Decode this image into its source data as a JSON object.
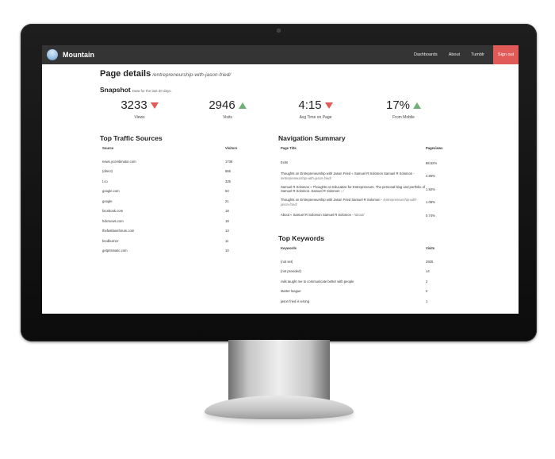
{
  "app": {
    "brand": "Mountain"
  },
  "nav": {
    "items": [
      "Dashboards",
      "About",
      "Tumblr"
    ],
    "signout": "Sign out"
  },
  "page": {
    "title": "Page details",
    "path": "/entrepreneurship-with-jason-fried/"
  },
  "snapshot": {
    "title": "Snapshot",
    "note": "Data for the last 30 days.",
    "stats": [
      {
        "value": "3233",
        "label": "Views",
        "trend": "down"
      },
      {
        "value": "2946",
        "label": "Visits",
        "trend": "up"
      },
      {
        "value": "4:15",
        "label": "Avg Time on Page",
        "trend": "down"
      },
      {
        "value": "17%",
        "label": "From Mobile",
        "trend": "up"
      }
    ]
  },
  "traffic": {
    "title": "Top Traffic Sources",
    "columns": [
      "Source",
      "Visitors"
    ],
    "rows": [
      [
        "news.ycombinator.com",
        "1738"
      ],
      [
        "(direct)",
        "655"
      ],
      [
        "t.co",
        "325"
      ],
      [
        "google.com",
        "53"
      ],
      [
        "google",
        "21"
      ],
      [
        "facebook.com",
        "18"
      ],
      [
        "hckrnews.com",
        "18"
      ],
      [
        "thefastlaneforum.com",
        "13"
      ],
      [
        "feedburner",
        "11"
      ],
      [
        "getprismatic.com",
        "10"
      ]
    ]
  },
  "navsummary": {
    "title": "Navigation Summary",
    "columns": [
      "Page Title",
      "Pageviews"
    ],
    "rows": [
      {
        "title": "Exits",
        "path": "",
        "value": "88.52%"
      },
      {
        "title": "Thoughts on Entrepreneurship with Jason Fried « Samuel R Solomon Samuel R Solomon",
        "path": "/entrepreneurship-with-jason-fried/",
        "value": "4.86%"
      },
      {
        "title": "Samuel R Solomon « Thoughts on Education for Entrepreneurs. The personal blog and portfolio of Samuel R Solomon. Samuel R Solomon",
        "path": "/",
        "value": "1.92%"
      },
      {
        "title": "Thoughts on Entrepreneurship with Jason Fried Samuel R Solomon",
        "path": "/entrepreneurship-with-jason-fried/",
        "value": "1.08%"
      },
      {
        "title": "About « Samuel R Solomon Samuel R Solomon",
        "path": "/about/",
        "value": "0.74%"
      }
    ]
  },
  "keywords": {
    "title": "Top Keywords",
    "columns": [
      "Keywords",
      "Visits"
    ],
    "rows": [
      [
        "(not set)",
        "2925"
      ],
      [
        "(not provided)",
        "14"
      ],
      [
        "rails taught me to communicate better with people",
        "2"
      ],
      [
        "starter league",
        "2"
      ],
      [
        "jason fried is wrong",
        "1"
      ]
    ]
  },
  "colors": {
    "topbar": "#343434",
    "signout": "#e05a58",
    "down": "#e55a55",
    "up": "#6fb174"
  }
}
